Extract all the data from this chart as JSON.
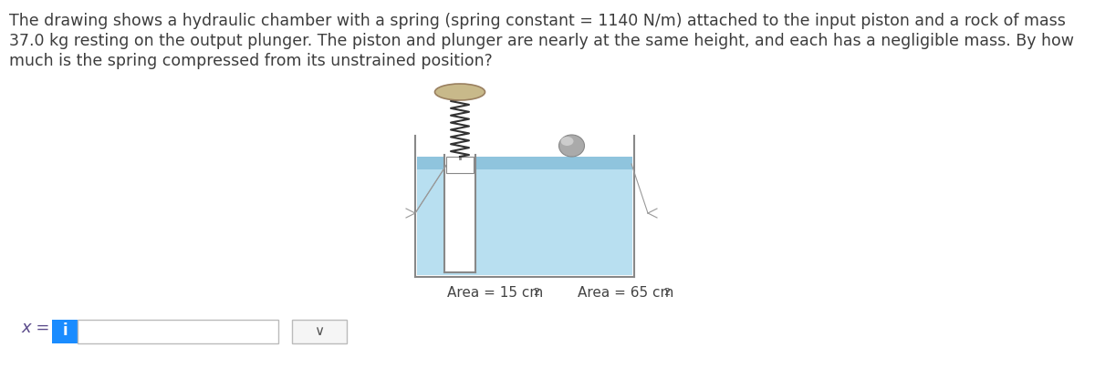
{
  "title_line1": "The drawing shows a hydraulic chamber with a spring (spring constant = 1140 N/m) attached to the input piston and a rock of mass",
  "title_line2": "37.0 kg resting on the output plunger. The piston and plunger are nearly at the same height, and each has a negligible mass. By how",
  "title_line3": "much is the spring compressed from its unstrained position?",
  "title_color": "#3d3d3d",
  "title_fontsize": 12.5,
  "bg_color": "#ffffff",
  "area_label_left": "Area = 15 cm",
  "area_label_right": "Area = 65 cm",
  "x_label": "x =",
  "fluid_color": "#b8dff0",
  "fluid_color_dark": "#8fc4dd",
  "chamber_line_color": "#888888",
  "spring_color": "#333333",
  "rock_color": "#aaaaaa",
  "rock_color2": "#cccccc",
  "dome_color": "#c8b98a",
  "dome_edge_color": "#9a8060",
  "input_box_color": "#1a8cff",
  "dropdown_color": "#f5f5f5",
  "piston_plunger_white": "#ffffff",
  "annotation_line_color": "#999999"
}
